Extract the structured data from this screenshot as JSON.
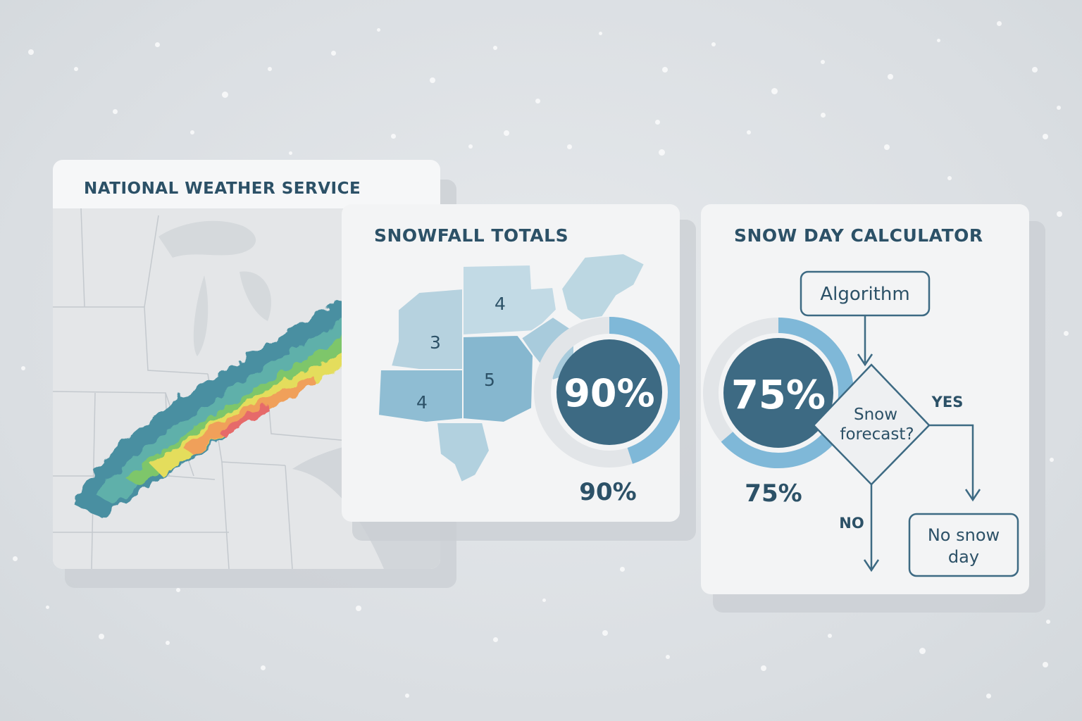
{
  "nws_card": {
    "title": "NATIONAL WEATHER SERVICE"
  },
  "snowfall_card": {
    "title": "SNOWFALL TOTALS",
    "region_values": [
      "4",
      "3",
      "5",
      "4"
    ],
    "gauge_value": "90%",
    "gauge_fraction": 0.9,
    "caption": "90%"
  },
  "calculator_card": {
    "title": "SNOW DAY CALCULATOR",
    "gauge_value": "75%",
    "gauge_fraction": 0.75,
    "caption": "75%",
    "flow": {
      "start": "Algorithm",
      "decision_line1": "Snow",
      "decision_line2": "forecast?",
      "yes_label": "YES",
      "no_label": "NO",
      "outcome_line1": "No snow",
      "outcome_line2": "day"
    }
  },
  "colors": {
    "accent": "#2c5167",
    "gauge_dark": "#3d6a83",
    "gauge_light": "#7fb8d8",
    "ring_track": "#e2e5e8"
  },
  "icons": [
    "snowflake-dots",
    "arrow-down-icon",
    "arrow-right-icon"
  ]
}
